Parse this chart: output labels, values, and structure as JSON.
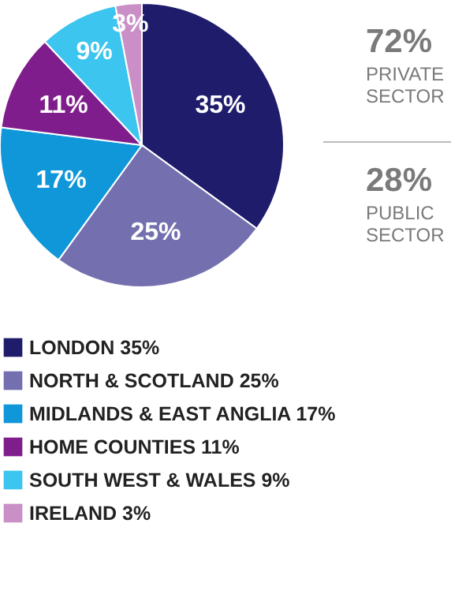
{
  "chart_data": {
    "type": "pie",
    "categories": [
      "LONDON 35%",
      "NORTH & SCOTLAND 25%",
      "MIDLANDS & EAST ANGLIA 17%",
      "HOME COUNTIES 11%",
      "SOUTH WEST & WALES 9%",
      "IRELAND 3%"
    ],
    "values": [
      35,
      25,
      17,
      11,
      9,
      3
    ],
    "value_labels": [
      "35%",
      "25%",
      "17%",
      "11%",
      "9%",
      "3%"
    ],
    "colors": [
      "#1f1c6b",
      "#746fae",
      "#0f97d9",
      "#801d8c",
      "#3cc5ef",
      "#c98fc6"
    ],
    "legend": "bottom",
    "annotations": [
      "72%",
      "PRIVATE SECTOR",
      "28%",
      "PUBLIC SECTOR"
    ]
  }
}
